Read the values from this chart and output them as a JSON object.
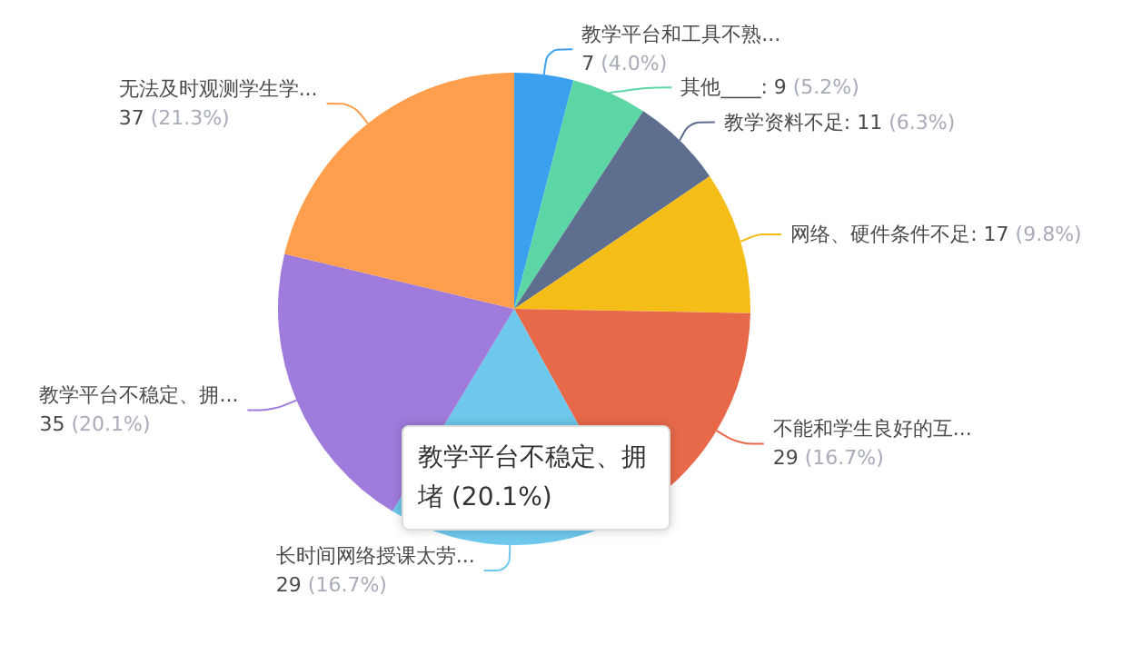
{
  "chart_data": {
    "type": "pie",
    "categories": [
      "教学平台和工具不熟...",
      "其他____",
      "教学资料不足",
      "网络、硬件条件不足",
      "不能和学生良好的互...",
      "长时间网络授课太劳...",
      "教学平台不稳定、拥...",
      "无法及时观测学生学..."
    ],
    "values": [
      7,
      9,
      11,
      17,
      29,
      29,
      35,
      37
    ],
    "value_labels": [
      "7 (4.0%)",
      ": 9 (5.2%)",
      ": 11 (6.3%)",
      ": 17 (9.8%)",
      "29 (16.7%)",
      "29 (16.7%)",
      "35 (20.1%)",
      "37 (21.3%)"
    ],
    "colors": [
      "#3ba1ee",
      "#5cd6a5",
      "#5d6e8f",
      "#f5bd17",
      "#e8694a",
      "#6dc8ec",
      "#9f7bdb",
      "#ff9e4c"
    ],
    "annotations": [
      "教学平台不稳定、拥堵 (20.1%)"
    ],
    "legend": false
  }
}
